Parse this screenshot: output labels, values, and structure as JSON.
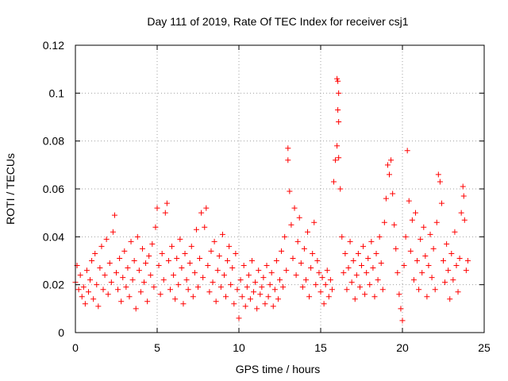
{
  "chart_data": {
    "type": "scatter",
    "title": "Day 111 of 2019, Rate Of TEC Index for receiver csj1",
    "xlabel": "GPS time / hours",
    "ylabel": "ROTI / TECUs",
    "xlim": [
      0,
      25
    ],
    "ylim": [
      0,
      0.12
    ],
    "xticks": [
      0,
      5,
      10,
      15,
      20,
      25
    ],
    "xtick_labels": [
      "0",
      "5",
      "10",
      "15",
      "20",
      "25"
    ],
    "yticks": [
      0,
      0.02,
      0.04,
      0.06,
      0.08,
      0.1,
      0.12
    ],
    "ytick_labels": [
      "0",
      "0.02",
      "0.04",
      "0.06",
      "0.08",
      "0.1",
      "0.12"
    ],
    "grid": true,
    "marker": "plus",
    "color": "#ff0000",
    "series": [
      {
        "name": "ROTI",
        "points": [
          [
            0.0,
            0.021
          ],
          [
            0.1,
            0.028
          ],
          [
            0.2,
            0.018
          ],
          [
            0.3,
            0.024
          ],
          [
            0.4,
            0.015
          ],
          [
            0.5,
            0.019
          ],
          [
            0.6,
            0.012
          ],
          [
            0.7,
            0.026
          ],
          [
            0.8,
            0.017
          ],
          [
            0.9,
            0.022
          ],
          [
            1.0,
            0.03
          ],
          [
            1.1,
            0.014
          ],
          [
            1.2,
            0.033
          ],
          [
            1.3,
            0.02
          ],
          [
            1.4,
            0.011
          ],
          [
            1.5,
            0.027
          ],
          [
            1.6,
            0.036
          ],
          [
            1.7,
            0.018
          ],
          [
            1.8,
            0.024
          ],
          [
            1.9,
            0.039
          ],
          [
            2.0,
            0.016
          ],
          [
            2.1,
            0.029
          ],
          [
            2.2,
            0.021
          ],
          [
            2.3,
            0.042
          ],
          [
            2.4,
            0.049
          ],
          [
            2.5,
            0.025
          ],
          [
            2.6,
            0.018
          ],
          [
            2.7,
            0.031
          ],
          [
            2.8,
            0.013
          ],
          [
            2.9,
            0.023
          ],
          [
            3.0,
            0.034
          ],
          [
            3.1,
            0.019
          ],
          [
            3.2,
            0.027
          ],
          [
            3.3,
            0.015
          ],
          [
            3.4,
            0.038
          ],
          [
            3.5,
            0.022
          ],
          [
            3.6,
            0.03
          ],
          [
            3.7,
            0.01
          ],
          [
            3.8,
            0.04
          ],
          [
            3.9,
            0.026
          ],
          [
            4.0,
            0.017
          ],
          [
            4.1,
            0.035
          ],
          [
            4.2,
            0.021
          ],
          [
            4.3,
            0.029
          ],
          [
            4.4,
            0.013
          ],
          [
            4.5,
            0.032
          ],
          [
            4.6,
            0.024
          ],
          [
            4.7,
            0.037
          ],
          [
            4.8,
            0.019
          ],
          [
            4.9,
            0.044
          ],
          [
            5.0,
            0.052
          ],
          [
            5.1,
            0.028
          ],
          [
            5.2,
            0.016
          ],
          [
            5.3,
            0.033
          ],
          [
            5.4,
            0.022
          ],
          [
            5.5,
            0.05
          ],
          [
            5.6,
            0.054
          ],
          [
            5.7,
            0.03
          ],
          [
            5.8,
            0.018
          ],
          [
            5.9,
            0.036
          ],
          [
            6.0,
            0.024
          ],
          [
            6.1,
            0.014
          ],
          [
            6.2,
            0.031
          ],
          [
            6.3,
            0.02
          ],
          [
            6.4,
            0.039
          ],
          [
            6.5,
            0.027
          ],
          [
            6.6,
            0.012
          ],
          [
            6.7,
            0.033
          ],
          [
            6.8,
            0.022
          ],
          [
            6.9,
            0.018
          ],
          [
            7.0,
            0.029
          ],
          [
            7.1,
            0.036
          ],
          [
            7.2,
            0.015
          ],
          [
            7.3,
            0.025
          ],
          [
            7.4,
            0.043
          ],
          [
            7.5,
            0.019
          ],
          [
            7.6,
            0.031
          ],
          [
            7.7,
            0.05
          ],
          [
            7.8,
            0.023
          ],
          [
            7.9,
            0.044
          ],
          [
            8.0,
            0.052
          ],
          [
            8.1,
            0.028
          ],
          [
            8.2,
            0.017
          ],
          [
            8.3,
            0.034
          ],
          [
            8.4,
            0.021
          ],
          [
            8.5,
            0.038
          ],
          [
            8.6,
            0.013
          ],
          [
            8.7,
            0.026
          ],
          [
            8.8,
            0.032
          ],
          [
            8.9,
            0.019
          ],
          [
            9.0,
            0.041
          ],
          [
            9.1,
            0.024
          ],
          [
            9.2,
            0.015
          ],
          [
            9.3,
            0.03
          ],
          [
            9.4,
            0.036
          ],
          [
            9.5,
            0.02
          ],
          [
            9.6,
            0.027
          ],
          [
            9.7,
            0.012
          ],
          [
            9.8,
            0.033
          ],
          [
            9.9,
            0.018
          ],
          [
            10.0,
            0.006
          ],
          [
            10.1,
            0.022
          ],
          [
            10.2,
            0.015
          ],
          [
            10.3,
            0.028
          ],
          [
            10.4,
            0.011
          ],
          [
            10.5,
            0.019
          ],
          [
            10.6,
            0.024
          ],
          [
            10.7,
            0.014
          ],
          [
            10.8,
            0.03
          ],
          [
            10.9,
            0.017
          ],
          [
            11.0,
            0.021
          ],
          [
            11.1,
            0.01
          ],
          [
            11.2,
            0.026
          ],
          [
            11.3,
            0.016
          ],
          [
            11.4,
            0.019
          ],
          [
            11.5,
            0.023
          ],
          [
            11.6,
            0.012
          ],
          [
            11.7,
            0.028
          ],
          [
            11.8,
            0.015
          ],
          [
            11.9,
            0.02
          ],
          [
            12.0,
            0.025
          ],
          [
            12.1,
            0.011
          ],
          [
            12.2,
            0.018
          ],
          [
            12.3,
            0.03
          ],
          [
            12.4,
            0.014
          ],
          [
            12.5,
            0.022
          ],
          [
            12.6,
            0.034
          ],
          [
            12.7,
            0.019
          ],
          [
            12.8,
            0.04
          ],
          [
            12.9,
            0.026
          ],
          [
            13.0,
            0.077
          ],
          [
            13.0,
            0.072
          ],
          [
            13.1,
            0.059
          ],
          [
            13.2,
            0.045
          ],
          [
            13.3,
            0.031
          ],
          [
            13.4,
            0.052
          ],
          [
            13.5,
            0.024
          ],
          [
            13.6,
            0.038
          ],
          [
            13.7,
            0.048
          ],
          [
            13.8,
            0.029
          ],
          [
            13.9,
            0.019
          ],
          [
            14.0,
            0.035
          ],
          [
            14.1,
            0.022
          ],
          [
            14.2,
            0.042
          ],
          [
            14.3,
            0.015
          ],
          [
            14.4,
            0.027
          ],
          [
            14.5,
            0.033
          ],
          [
            14.6,
            0.046
          ],
          [
            14.7,
            0.02
          ],
          [
            14.8,
            0.03
          ],
          [
            14.9,
            0.025
          ],
          [
            15.0,
            0.017
          ],
          [
            15.1,
            0.023
          ],
          [
            15.2,
            0.012
          ],
          [
            15.3,
            0.02
          ],
          [
            15.4,
            0.026
          ],
          [
            15.5,
            0.015
          ],
          [
            15.6,
            0.022
          ],
          [
            15.7,
            0.018
          ],
          [
            15.8,
            0.063
          ],
          [
            15.9,
            0.072
          ],
          [
            16.0,
            0.106
          ],
          [
            16.05,
            0.105
          ],
          [
            16.1,
            0.1
          ],
          [
            16.05,
            0.093
          ],
          [
            16.1,
            0.088
          ],
          [
            16.0,
            0.078
          ],
          [
            16.1,
            0.073
          ],
          [
            16.2,
            0.06
          ],
          [
            16.3,
            0.04
          ],
          [
            16.4,
            0.025
          ],
          [
            16.5,
            0.033
          ],
          [
            16.6,
            0.018
          ],
          [
            16.7,
            0.027
          ],
          [
            16.8,
            0.038
          ],
          [
            16.9,
            0.021
          ],
          [
            17.0,
            0.03
          ],
          [
            17.1,
            0.014
          ],
          [
            17.2,
            0.024
          ],
          [
            17.3,
            0.033
          ],
          [
            17.4,
            0.019
          ],
          [
            17.5,
            0.028
          ],
          [
            17.6,
            0.036
          ],
          [
            17.7,
            0.016
          ],
          [
            17.8,
            0.025
          ],
          [
            17.9,
            0.031
          ],
          [
            18.0,
            0.02
          ],
          [
            18.1,
            0.038
          ],
          [
            18.2,
            0.027
          ],
          [
            18.3,
            0.015
          ],
          [
            18.4,
            0.033
          ],
          [
            18.5,
            0.022
          ],
          [
            18.6,
            0.04
          ],
          [
            18.7,
            0.029
          ],
          [
            18.8,
            0.018
          ],
          [
            18.9,
            0.046
          ],
          [
            19.0,
            0.056
          ],
          [
            19.1,
            0.07
          ],
          [
            19.2,
            0.066
          ],
          [
            19.3,
            0.072
          ],
          [
            19.4,
            0.058
          ],
          [
            19.5,
            0.045
          ],
          [
            19.6,
            0.035
          ],
          [
            19.7,
            0.025
          ],
          [
            19.8,
            0.016
          ],
          [
            19.9,
            0.01
          ],
          [
            20.0,
            0.005
          ],
          [
            20.1,
            0.028
          ],
          [
            20.2,
            0.04
          ],
          [
            20.3,
            0.076
          ],
          [
            20.4,
            0.055
          ],
          [
            20.5,
            0.034
          ],
          [
            20.6,
            0.047
          ],
          [
            20.7,
            0.022
          ],
          [
            20.8,
            0.05
          ],
          [
            20.9,
            0.03
          ],
          [
            21.0,
            0.018
          ],
          [
            21.1,
            0.039
          ],
          [
            21.2,
            0.025
          ],
          [
            21.3,
            0.044
          ],
          [
            21.4,
            0.032
          ],
          [
            21.5,
            0.015
          ],
          [
            21.6,
            0.028
          ],
          [
            21.7,
            0.041
          ],
          [
            21.8,
            0.023
          ],
          [
            21.9,
            0.035
          ],
          [
            22.0,
            0.018
          ],
          [
            22.1,
            0.046
          ],
          [
            22.2,
            0.066
          ],
          [
            22.3,
            0.063
          ],
          [
            22.4,
            0.054
          ],
          [
            22.5,
            0.03
          ],
          [
            22.6,
            0.021
          ],
          [
            22.7,
            0.037
          ],
          [
            22.8,
            0.026
          ],
          [
            22.9,
            0.014
          ],
          [
            23.0,
            0.033
          ],
          [
            23.1,
            0.022
          ],
          [
            23.2,
            0.042
          ],
          [
            23.3,
            0.028
          ],
          [
            23.4,
            0.017
          ],
          [
            23.5,
            0.031
          ],
          [
            23.6,
            0.05
          ],
          [
            23.7,
            0.061
          ],
          [
            23.75,
            0.057
          ],
          [
            23.8,
            0.047
          ],
          [
            23.9,
            0.026
          ],
          [
            24.0,
            0.03
          ]
        ]
      }
    ]
  }
}
